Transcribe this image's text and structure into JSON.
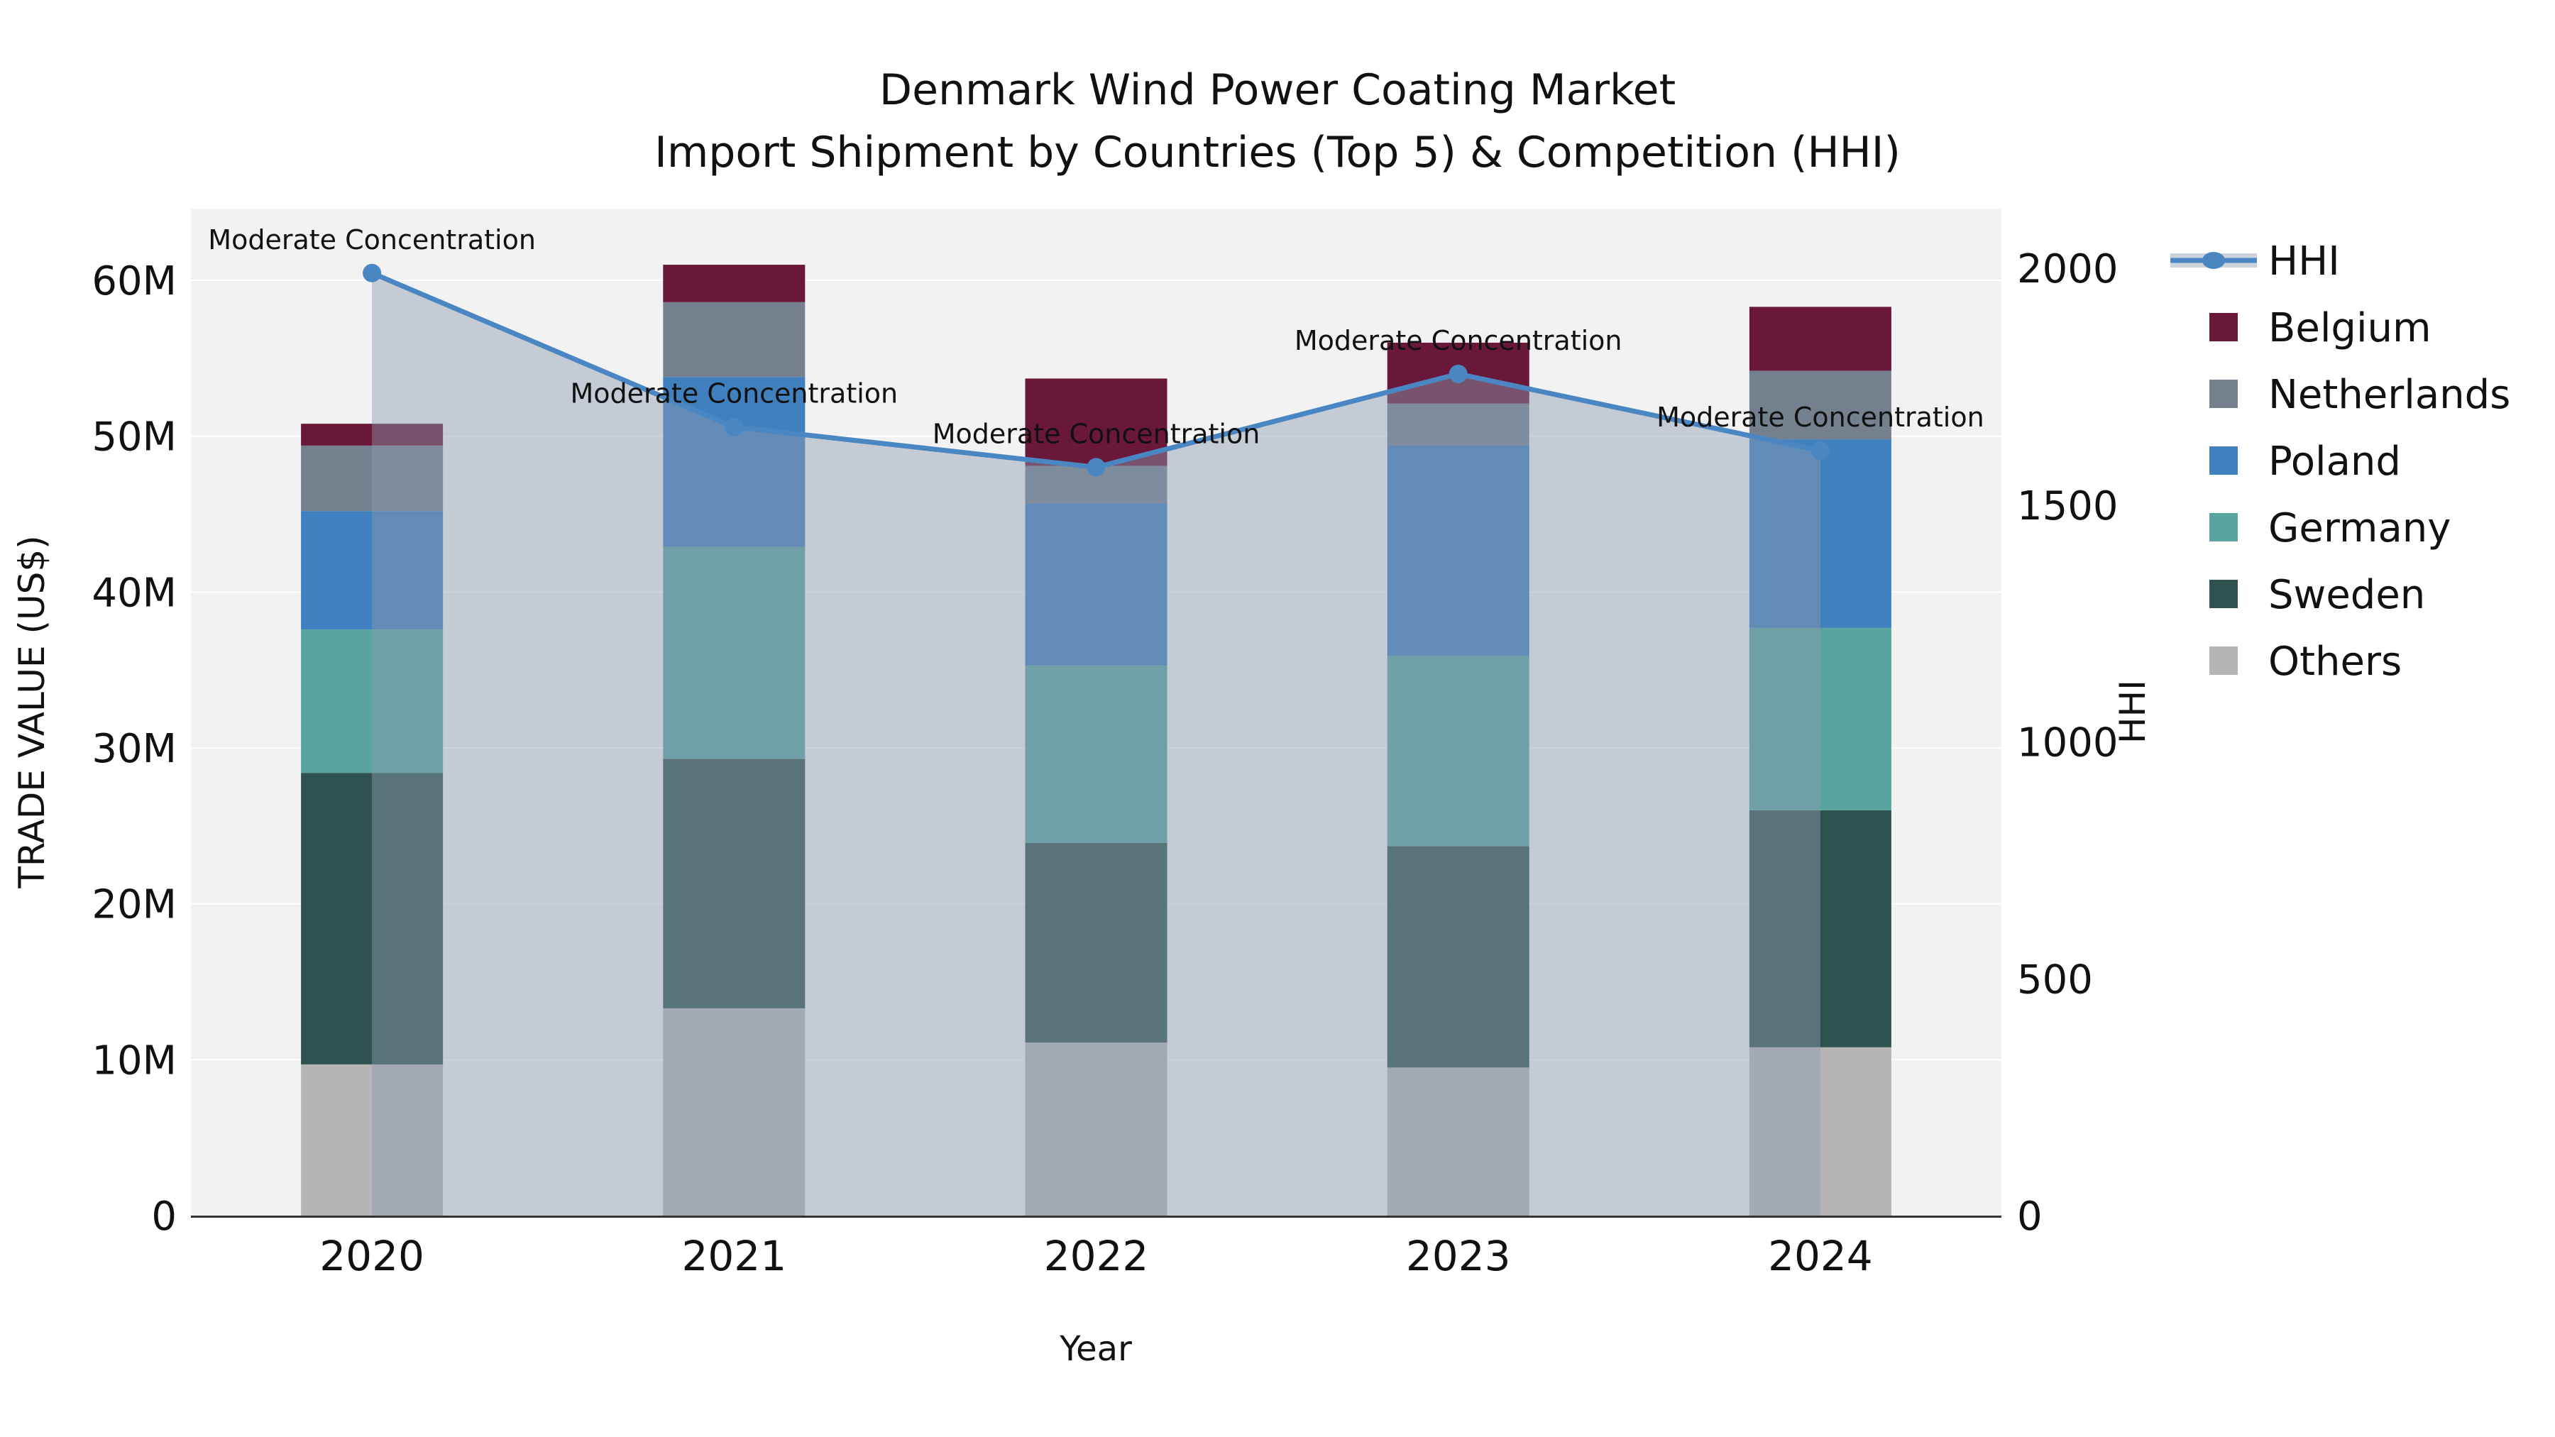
{
  "chart_data": {
    "type": "bar+line",
    "title_line1": "Denmark Wind Power Coating Market",
    "title_line2": "Import Shipment by Countries (Top 5) & Competition (HHI)",
    "xlabel": "Year",
    "ylabel_left": "TRADE VALUE (US$)",
    "ylabel_right": "HHI",
    "categories": [
      "2020",
      "2021",
      "2022",
      "2023",
      "2024"
    ],
    "value_unit": "millions USD",
    "stack_series": [
      {
        "name": "Others",
        "color": "#B5B5B5",
        "values": [
          9.7,
          13.3,
          11.1,
          9.5,
          10.8
        ]
      },
      {
        "name": "Sweden",
        "color": "#2E524D",
        "values": [
          18.7,
          16.0,
          12.8,
          14.2,
          15.2
        ]
      },
      {
        "name": "Germany",
        "color": "#5AA4A0",
        "values": [
          9.2,
          13.6,
          11.4,
          12.2,
          11.7
        ]
      },
      {
        "name": "Poland",
        "color": "#4180BE",
        "values": [
          7.6,
          10.9,
          10.4,
          13.5,
          12.1
        ]
      },
      {
        "name": "Netherlands",
        "color": "#75808F",
        "values": [
          4.2,
          4.8,
          2.4,
          2.7,
          4.4
        ]
      },
      {
        "name": "Belgium",
        "color": "#6A1839",
        "values": [
          1.4,
          2.4,
          5.6,
          3.9,
          4.1
        ]
      }
    ],
    "bar_totals": [
      50.8,
      61.0,
      53.7,
      56.0,
      58.3
    ],
    "line_series": {
      "name": "HHI",
      "color": "#4A87C2",
      "area_fill": "rgba(140,155,175,0.45)",
      "values": [
        1990,
        1665,
        1580,
        1777,
        1615
      ]
    },
    "annotations": [
      {
        "category": "2020",
        "text": "Moderate Concentration"
      },
      {
        "category": "2021",
        "text": "Moderate Concentration"
      },
      {
        "category": "2022",
        "text": "Moderate Concentration"
      },
      {
        "category": "2023",
        "text": "Moderate Concentration"
      },
      {
        "category": "2024",
        "text": "Moderate Concentration"
      }
    ],
    "left_axis": {
      "range_top": 64.6,
      "ticks": [
        {
          "value": 0,
          "label": "0"
        },
        {
          "value": 10,
          "label": "10M"
        },
        {
          "value": 20,
          "label": "20M"
        },
        {
          "value": 30,
          "label": "30M"
        },
        {
          "value": 40,
          "label": "40M"
        },
        {
          "value": 50,
          "label": "50M"
        },
        {
          "value": 60,
          "label": "60M"
        }
      ]
    },
    "right_axis": {
      "range_top": 2126,
      "ticks": [
        {
          "value": 0,
          "label": "0"
        },
        {
          "value": 500,
          "label": "500"
        },
        {
          "value": 1000,
          "label": "1000"
        },
        {
          "value": 1500,
          "label": "1500"
        },
        {
          "value": 2000,
          "label": "2000"
        }
      ]
    },
    "legend": {
      "items": [
        {
          "label": "HHI",
          "kind": "line",
          "color": "#4A87C2"
        },
        {
          "label": "Belgium",
          "kind": "swatch",
          "color": "#6A1839"
        },
        {
          "label": "Netherlands",
          "kind": "swatch",
          "color": "#75808F"
        },
        {
          "label": "Poland",
          "kind": "swatch",
          "color": "#4180BE"
        },
        {
          "label": "Germany",
          "kind": "swatch",
          "color": "#5AA4A0"
        },
        {
          "label": "Sweden",
          "kind": "swatch",
          "color": "#2E524D"
        },
        {
          "label": "Others",
          "kind": "swatch",
          "color": "#B5B5B5"
        }
      ]
    },
    "style": {
      "plot_background": "#F2F2F2",
      "gridline_color": "#FFFFFF",
      "axis_line_color": "#333333",
      "text_color": "#111111"
    }
  }
}
